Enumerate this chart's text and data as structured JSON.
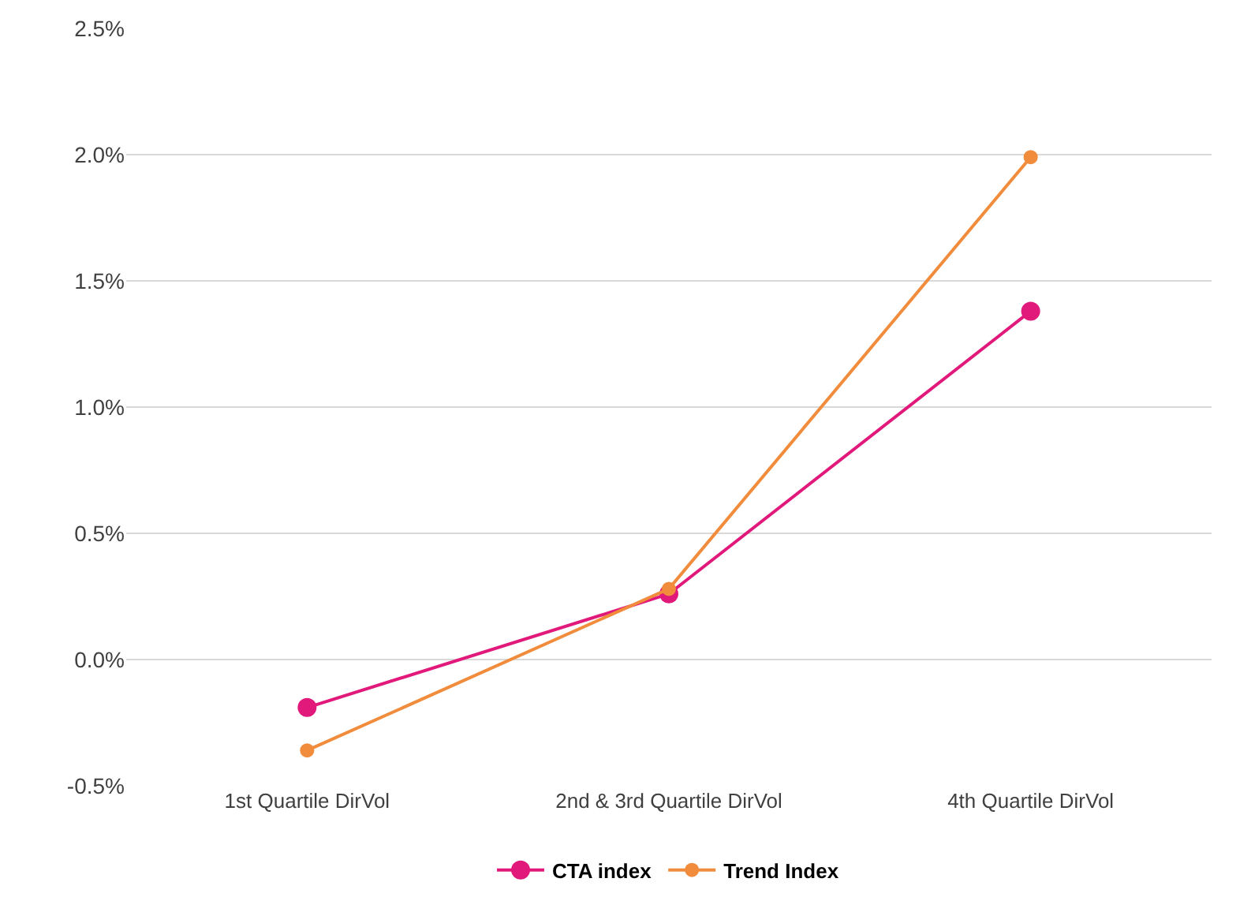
{
  "chart_data": {
    "type": "line",
    "categories": [
      "1st Quartile DirVol",
      "2nd & 3rd Quartile DirVol",
      "4th Quartile DirVol"
    ],
    "series": [
      {
        "name": "CTA index",
        "color": "#e0197b",
        "values": [
          -0.19,
          0.26,
          1.38
        ]
      },
      {
        "name": "Trend Index",
        "color": "#f08c3c",
        "values": [
          -0.36,
          0.28,
          1.99
        ]
      }
    ],
    "ylim": [
      -0.5,
      2.5
    ],
    "yticks": [
      {
        "value": -0.5,
        "label": "-0.5%"
      },
      {
        "value": 0,
        "label": "0.0%"
      },
      {
        "value": 0.5,
        "label": "0.5%"
      },
      {
        "value": 1,
        "label": "1.0%"
      },
      {
        "value": 1.5,
        "label": "1.5%"
      },
      {
        "value": 2,
        "label": "2.0%"
      },
      {
        "value": 2.5,
        "label": "2.5%"
      }
    ],
    "grid": "y",
    "legend": "bottom",
    "marker": "circle",
    "line_style": "solid"
  }
}
